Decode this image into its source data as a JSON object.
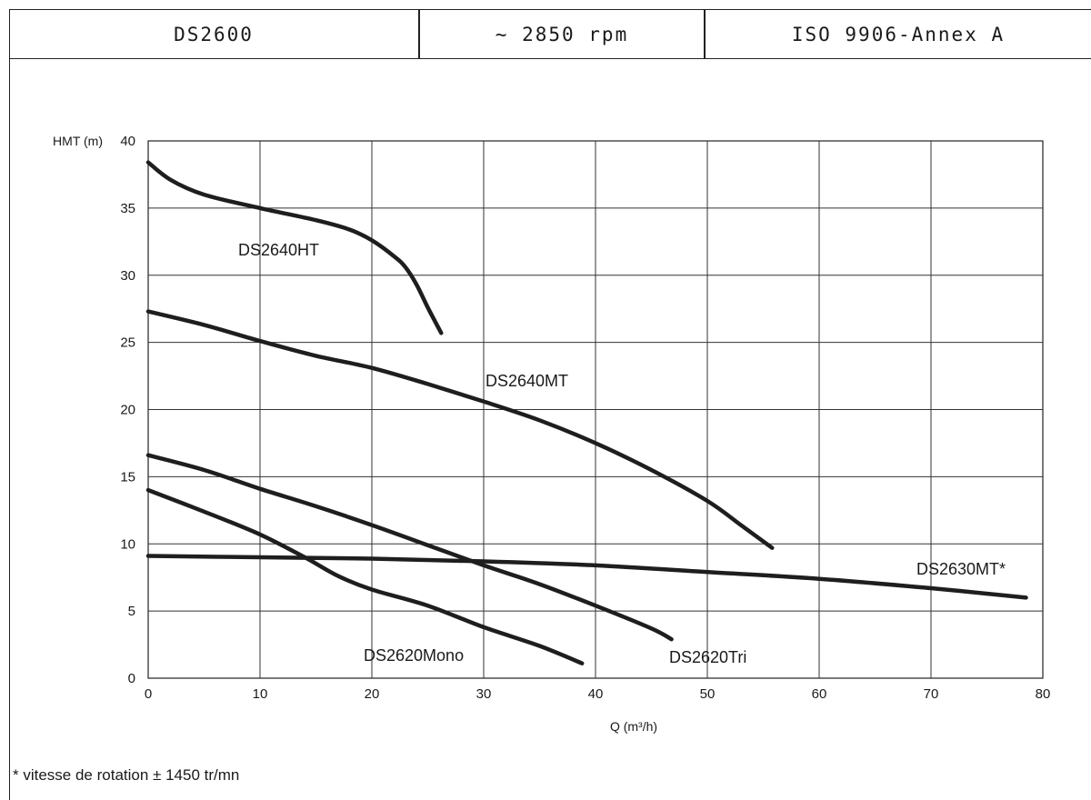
{
  "header": {
    "model": "DS2600",
    "speed": "~ 2850 rpm",
    "standard": "ISO 9906-Annex A"
  },
  "footnote": "* vitesse de rotation ± 1450 tr/mn",
  "chart_data": {
    "type": "line",
    "ylabel": "HMT (m)",
    "xlabel": "Q (m³/h)",
    "xlim": [
      0,
      80
    ],
    "ylim": [
      0,
      40
    ],
    "x_ticks": [
      0,
      10,
      20,
      30,
      40,
      50,
      60,
      70,
      80
    ],
    "y_ticks": [
      0,
      5,
      10,
      15,
      20,
      25,
      30,
      35,
      40
    ],
    "grid": true,
    "series": [
      {
        "name": "DS2640HT",
        "points": [
          [
            0,
            38.4
          ],
          [
            2,
            37.1
          ],
          [
            5,
            36.0
          ],
          [
            10,
            35.0
          ],
          [
            15,
            34.1
          ],
          [
            18,
            33.4
          ],
          [
            20,
            32.6
          ],
          [
            22,
            31.4
          ],
          [
            23,
            30.6
          ],
          [
            24,
            29.3
          ],
          [
            25,
            27.6
          ],
          [
            26.2,
            25.7
          ]
        ]
      },
      {
        "name": "DS2640MT",
        "points": [
          [
            0,
            27.3
          ],
          [
            5,
            26.3
          ],
          [
            10,
            25.1
          ],
          [
            15,
            24.0
          ],
          [
            20,
            23.1
          ],
          [
            25,
            21.9
          ],
          [
            30,
            20.6
          ],
          [
            35,
            19.2
          ],
          [
            40,
            17.5
          ],
          [
            45,
            15.5
          ],
          [
            50,
            13.2
          ],
          [
            53,
            11.4
          ],
          [
            55.8,
            9.7
          ]
        ]
      },
      {
        "name": "DS2620Tri",
        "points": [
          [
            0,
            16.6
          ],
          [
            5,
            15.5
          ],
          [
            10,
            14.1
          ],
          [
            15,
            12.8
          ],
          [
            20,
            11.4
          ],
          [
            25,
            9.9
          ],
          [
            30,
            8.4
          ],
          [
            35,
            7.0
          ],
          [
            40,
            5.4
          ],
          [
            45,
            3.7
          ],
          [
            46.8,
            2.9
          ]
        ]
      },
      {
        "name": "DS2620Mono",
        "points": [
          [
            0,
            14.0
          ],
          [
            5,
            12.4
          ],
          [
            10,
            10.7
          ],
          [
            14,
            9.0
          ],
          [
            17,
            7.6
          ],
          [
            20,
            6.6
          ],
          [
            25,
            5.4
          ],
          [
            30,
            3.8
          ],
          [
            35,
            2.4
          ],
          [
            38.8,
            1.1
          ]
        ]
      },
      {
        "name": "DS2630MT*",
        "points": [
          [
            0,
            9.1
          ],
          [
            10,
            9.0
          ],
          [
            20,
            8.9
          ],
          [
            30,
            8.7
          ],
          [
            40,
            8.4
          ],
          [
            50,
            7.9
          ],
          [
            60,
            7.4
          ],
          [
            70,
            6.7
          ],
          [
            78.5,
            6.0
          ]
        ]
      }
    ]
  }
}
